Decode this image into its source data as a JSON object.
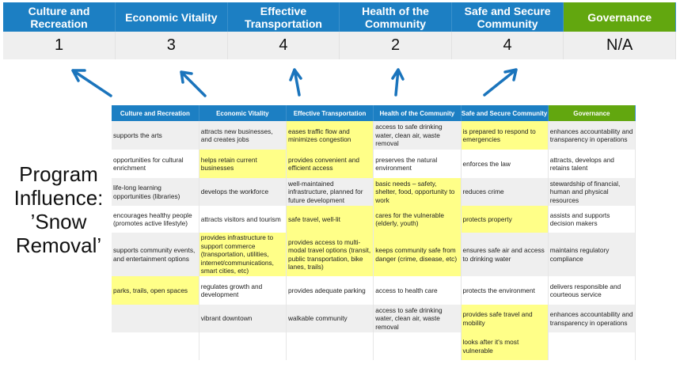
{
  "summary": {
    "headers": [
      "Culture and Recreation",
      "Economic Vitality",
      "Effective Transportation",
      "Health of the Community",
      "Safe and Secure Community",
      "Governance"
    ],
    "scores": [
      "1",
      "3",
      "4",
      "2",
      "4",
      "N/A"
    ]
  },
  "program_label": "Program Influence: ’Snow Removal’",
  "colors": {
    "header_blue": "#1c7fc3",
    "governance_green": "#62a70f",
    "highlight": "#ffff88",
    "arrow": "#1a74bc"
  },
  "detail": {
    "headers": [
      "Culture and Recreation",
      "Economic Vitality",
      "Effective Transportation",
      "Health of the Community",
      "Safe and Secure Community",
      "Governance"
    ],
    "rows": [
      {
        "cells": [
          "supports the arts",
          "attracts new businesses, and creates jobs",
          "eases traffic flow and minimizes congestion",
          "access to safe drinking water, clean air, waste removal",
          "is prepared to respond to emergencies",
          "enhances accountability and transparency in operations"
        ],
        "highlight": [
          false,
          false,
          true,
          false,
          true,
          false
        ]
      },
      {
        "cells": [
          "opportunities for cultural enrichment",
          "helps retain current businesses",
          "provides convenient and efficient access",
          "preserves the natural environment",
          "enforces the law",
          "attracts, develops and retains talent"
        ],
        "highlight": [
          false,
          true,
          true,
          false,
          false,
          false
        ]
      },
      {
        "cells": [
          "life-long learning opportunities (libraries)",
          "develops the workforce",
          "well-maintained infrastructure, planned for future development",
          "basic needs – safety, shelter, food, opportunity to work",
          "reduces crime",
          "stewardship of financial, human and physical resources"
        ],
        "highlight": [
          false,
          false,
          false,
          true,
          false,
          false
        ]
      },
      {
        "cells": [
          "encourages healthy people (promotes active lifestyle)",
          "attracts visitors and tourism",
          "safe travel, well-lit",
          "cares for the vulnerable (elderly, youth)",
          "protects property",
          "assists and supports decision makers"
        ],
        "highlight": [
          false,
          false,
          true,
          true,
          true,
          false
        ]
      },
      {
        "cells": [
          "supports community events, and entertainment options",
          "provides infrastructure to support commerce (transportation, utilities, internet/communications, smart cities, etc)",
          "provides access to multi-modal travel options (transit, public transportation, bike lanes, trails)",
          "keeps community safe from danger (crime, disease, etc)",
          "ensures safe air and access to drinking water",
          "maintains regulatory compliance"
        ],
        "highlight": [
          false,
          true,
          true,
          true,
          false,
          false
        ]
      },
      {
        "cells": [
          "parks, trails, open spaces",
          "regulates growth and development",
          "provides adequate parking",
          "access to health care",
          "protects the environment",
          "delivers responsible and courteous service"
        ],
        "highlight": [
          true,
          false,
          false,
          false,
          false,
          false
        ]
      },
      {
        "cells": [
          "",
          "vibrant downtown",
          "walkable community",
          "access to safe drinking water, clean air, waste removal",
          "provides safe travel and mobility",
          "enhances accountability and transparency in operations"
        ],
        "highlight": [
          false,
          false,
          false,
          false,
          true,
          false
        ]
      },
      {
        "cells": [
          "",
          "",
          "",
          "",
          "looks after it's most vulnerable",
          ""
        ],
        "highlight": [
          false,
          false,
          false,
          false,
          true,
          false
        ]
      }
    ]
  }
}
